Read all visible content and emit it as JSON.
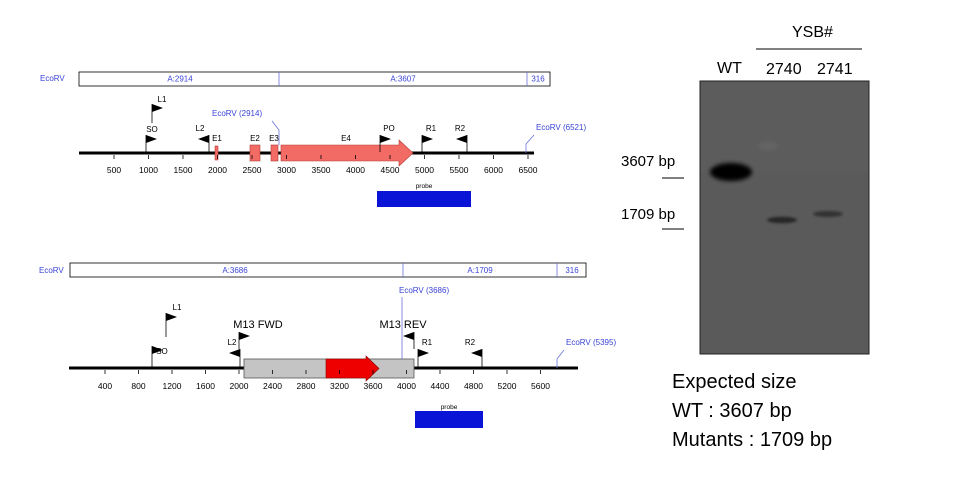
{
  "map1": {
    "enzyme_label": "EcoRV",
    "fragments": [
      "A:2914",
      "A:3607",
      "316"
    ],
    "primers": [
      "L1",
      "SO",
      "L2",
      "E1",
      "PO",
      "R1",
      "R2"
    ],
    "exons": [
      "E2",
      "E3",
      "E4"
    ],
    "sites": [
      "EcoRV (2914)",
      "EcoRV (6521)"
    ],
    "axis_ticks": [
      "500",
      "1000",
      "1500",
      "2000",
      "2500",
      "3000",
      "3500",
      "4000",
      "4500",
      "5000",
      "5500",
      "6000",
      "6500"
    ],
    "probe_label": "probe"
  },
  "map2": {
    "enzyme_label": "EcoRV",
    "fragments": [
      "A:3686",
      "A:1709",
      "316"
    ],
    "primers": [
      "L1",
      "SO",
      "L2",
      "R1",
      "R2"
    ],
    "primer_labels_large": [
      "M13 FWD",
      "M13 REV"
    ],
    "sites": [
      "EcoRV (3686)",
      "EcoRV (5395)"
    ],
    "axis_ticks": [
      "400",
      "800",
      "1200",
      "1600",
      "2000",
      "2400",
      "2800",
      "3200",
      "3600",
      "4000",
      "4400",
      "4800",
      "5200",
      "5600"
    ],
    "probe_label": "probe"
  },
  "blot": {
    "group_label": "YSB#",
    "lanes": [
      "WT",
      "2740",
      "2741"
    ],
    "size_markers": [
      "3607 bp",
      "1709 bp"
    ]
  },
  "expected": {
    "title": "Expected size",
    "wt": "WT : 3607 bp",
    "mutants": "Mutants : 1709 bp"
  },
  "colors": {
    "exon": "#f26b64",
    "exon_stroke": "#b33d36",
    "probe": "#0a14d6",
    "site_label": "#3a43d6",
    "arrow_red": "#ee0000",
    "insert_gray": "#c4c4c4",
    "blot_bg": "#5a5a5a"
  }
}
